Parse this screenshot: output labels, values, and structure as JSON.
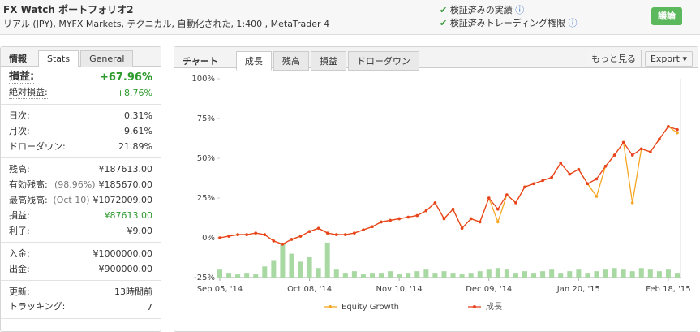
{
  "header": {
    "title": "FX Watch ポートフォリオ2",
    "subtitle_prefix": "リアル (JPY),",
    "broker": "MYFX Markets",
    "subtitle_suffix": ", テクニカル, 自動化された, 1:400 , MetaTrader 4",
    "checks": [
      "検証済みの実績",
      "検証済みトレーディング権限"
    ],
    "button": "議論"
  },
  "left_panel": {
    "tabs": [
      "情報",
      "Stats",
      "General"
    ],
    "groups": [
      [
        {
          "label": "損益:",
          "value": "+67.96%",
          "color": "#2e9a2e"
        },
        {
          "label": "絶対損益:",
          "value": "+8.76%",
          "color": "#2e9a2e"
        }
      ],
      [
        {
          "label": "日次:",
          "value": "0.31%"
        },
        {
          "label": "月次:",
          "value": "9.61%"
        },
        {
          "label": "ドローダウン:",
          "value": "21.89%"
        }
      ],
      [
        {
          "label": "残高:",
          "value": "¥187613.00"
        },
        {
          "label": "有効残高:",
          "note": "(98.96%)",
          "value": "¥185670.00"
        },
        {
          "label": "最高残高:",
          "note": "(Oct 10)",
          "value": "¥1072009.00"
        },
        {
          "label": "損益:",
          "value": "¥87613.00",
          "color": "#2e9a2e"
        },
        {
          "label": "利子:",
          "value": "¥9.00"
        }
      ],
      [
        {
          "label": "入金:",
          "value": "¥1000000.00"
        },
        {
          "label": "出金:",
          "value": "¥900000.00"
        }
      ],
      [
        {
          "label": "更新:",
          "value": "13時間前"
        },
        {
          "label": "トラッキング:",
          "value": "7"
        }
      ]
    ]
  },
  "chart_panel": {
    "title": "チャート",
    "tabs": [
      "成長",
      "残高",
      "損益",
      "ドローダウン"
    ],
    "buttons": [
      "もっと見る",
      "Export"
    ]
  },
  "chart_data": {
    "type": "line",
    "categories": [
      "Sep 05, '14",
      null,
      null,
      null,
      null,
      null,
      null,
      null,
      null,
      null,
      "Oct 08, '14",
      null,
      null,
      null,
      null,
      null,
      null,
      null,
      null,
      null,
      "Nov 10, '14",
      null,
      null,
      null,
      null,
      null,
      null,
      null,
      null,
      null,
      "Dec 09, '14",
      null,
      null,
      null,
      null,
      null,
      null,
      null,
      null,
      null,
      "Jan 20, '15",
      null,
      null,
      null,
      null,
      null,
      null,
      null,
      null,
      null,
      "Feb 18, '15",
      null
    ],
    "series": [
      {
        "name": "Equity Growth",
        "color": "#f5a623",
        "values": [
          0,
          1,
          2,
          2,
          3,
          2,
          -2,
          -4,
          -1,
          1,
          4,
          6,
          3,
          2,
          2,
          3,
          5,
          7,
          10,
          11,
          12,
          13,
          14,
          17,
          22,
          12,
          18,
          6,
          12,
          10,
          25,
          10,
          27,
          22,
          32,
          34,
          36,
          38,
          47,
          40,
          43,
          34,
          26,
          45,
          52,
          60,
          22,
          56,
          54,
          62,
          70,
          66
        ]
      },
      {
        "name": "成長",
        "color": "#e8431f",
        "values": [
          0,
          1,
          2,
          2,
          3,
          2,
          -2,
          -4,
          -1,
          1,
          4,
          6,
          3,
          2,
          2,
          3,
          5,
          7,
          10,
          11,
          12,
          13,
          14,
          17,
          22,
          12,
          18,
          6,
          12,
          10,
          25,
          18,
          27,
          22,
          32,
          34,
          36,
          38,
          47,
          40,
          43,
          34,
          37,
          45,
          52,
          60,
          52,
          56,
          54,
          62,
          70,
          68
        ]
      },
      {
        "type": "bar",
        "color": "#a9d9a2",
        "values": [
          -20,
          -22,
          -23,
          -22,
          -23,
          -18,
          -14,
          -4,
          -10,
          -15,
          -12,
          -19,
          -3,
          -20,
          -22,
          -21,
          -23,
          -22,
          -22,
          -21,
          -23,
          -22,
          -21,
          -20,
          -22,
          -21,
          -22,
          -23,
          -22,
          -21,
          -20,
          -19,
          -20,
          -22,
          -21,
          -22,
          -21,
          -20,
          -22,
          -21,
          -20,
          -22,
          -21,
          -20,
          -19,
          -20,
          -21,
          -19,
          -20,
          -21,
          -20,
          -22
        ]
      }
    ],
    "ylim": [
      -25,
      100
    ],
    "yticks": [
      {
        "value": -25,
        "label": "-25%"
      },
      {
        "value": 0,
        "label": "0%"
      },
      {
        "value": 25,
        "label": "25%"
      },
      {
        "value": 50,
        "label": "50%"
      },
      {
        "value": 75,
        "label": "75%"
      },
      {
        "value": 100,
        "label": "100%"
      }
    ],
    "grid": false
  }
}
